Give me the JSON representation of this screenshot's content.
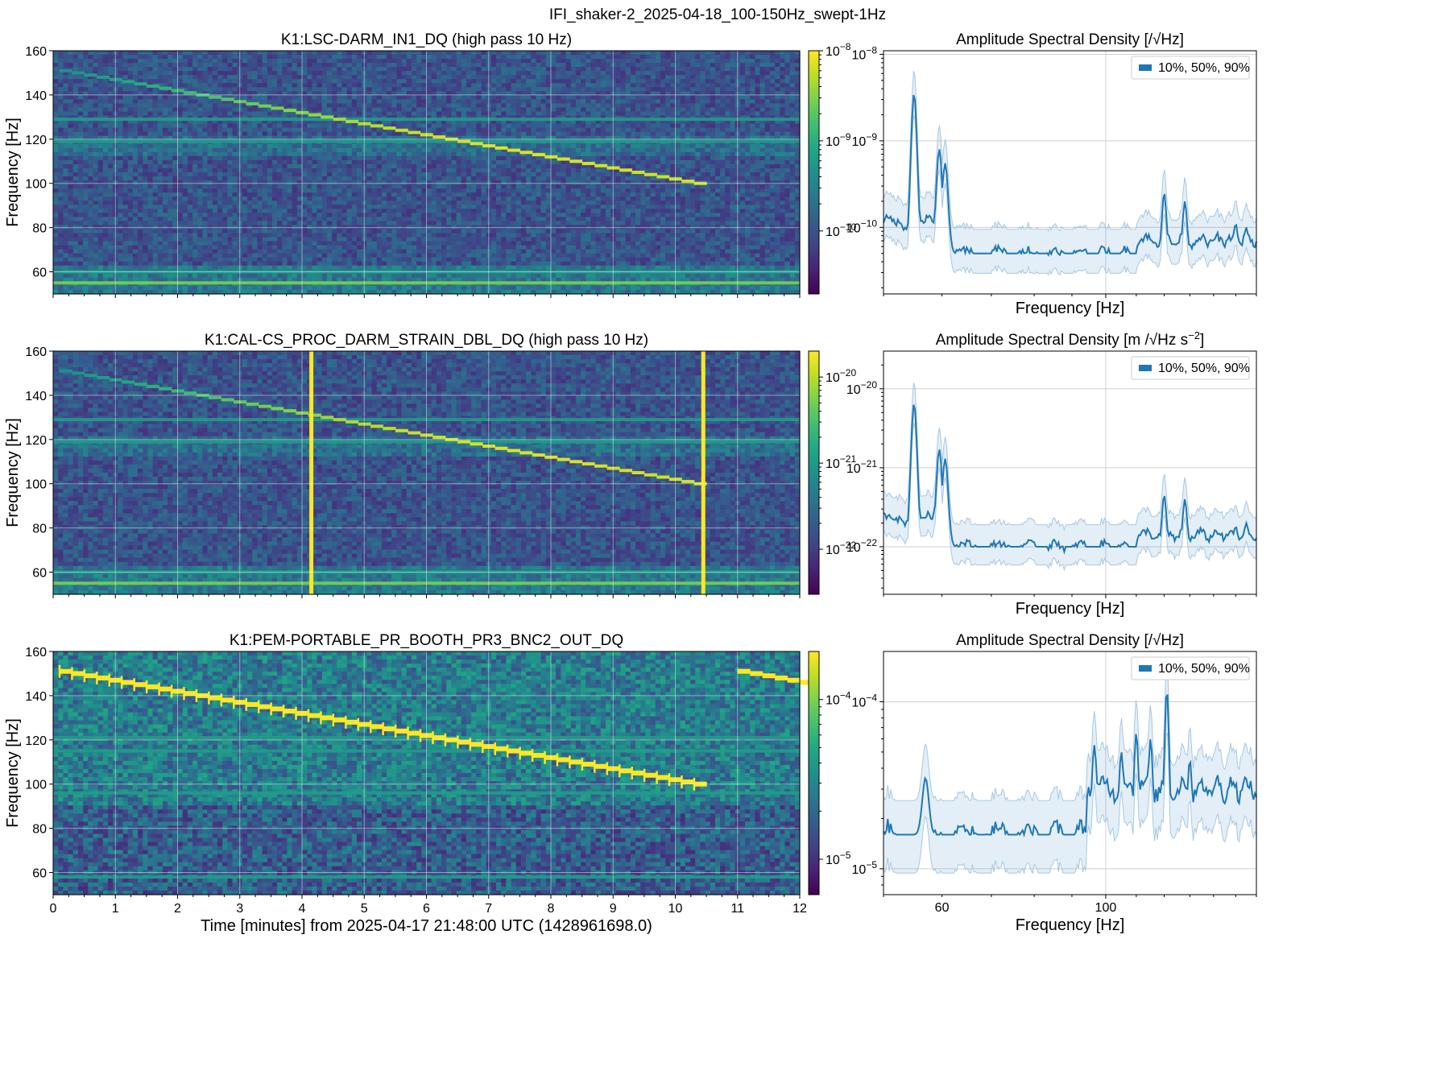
{
  "figure": {
    "suptitle": "IFI_shaker-2_2025-04-18_100-150Hz_swept-1Hz"
  },
  "chart_data": [
    {
      "type": "heatmap",
      "title": "K1:LSC-DARM_IN1_DQ (high pass 10 Hz)",
      "ylabel": "Frequency [Hz]",
      "xlabel": "",
      "xlim": [
        0,
        12
      ],
      "ylim": [
        50,
        160
      ],
      "xticks": [
        0,
        1,
        2,
        3,
        4,
        5,
        6,
        7,
        8,
        9,
        10,
        11,
        12
      ],
      "yticks": [
        60,
        80,
        100,
        120,
        140,
        160
      ],
      "colorbar": {
        "scale": "log",
        "range": [
          2e-11,
          1e-08
        ],
        "ticks": [
          "10^-8",
          "10^-9",
          "10^-10"
        ],
        "colormap": "viridis"
      },
      "sweep": {
        "start_min": 0.1,
        "end_min": 10.3,
        "start_hz": 151,
        "end_hz": 100,
        "step_hz": 1
      },
      "steady_lines_hz": [
        55,
        60,
        129,
        119
      ],
      "transients_min": []
    },
    {
      "type": "heatmap",
      "title": "K1:CAL-CS_PROC_DARM_STRAIN_DBL_DQ (high pass 10 Hz)",
      "ylabel": "Frequency [Hz]",
      "xlabel": "",
      "xlim": [
        0,
        12
      ],
      "ylim": [
        50,
        160
      ],
      "xticks": [
        0,
        1,
        2,
        3,
        4,
        5,
        6,
        7,
        8,
        9,
        10,
        11,
        12
      ],
      "yticks": [
        60,
        80,
        100,
        120,
        140,
        160
      ],
      "colorbar": {
        "scale": "log",
        "range": [
          3e-23,
          2e-20
        ],
        "ticks": [
          "10^-20",
          "10^-21",
          "10^-22"
        ],
        "colormap": "viridis"
      },
      "sweep": {
        "start_min": 0.1,
        "end_min": 10.3,
        "start_hz": 151,
        "end_hz": 100,
        "step_hz": 1
      },
      "steady_lines_hz": [
        55,
        60,
        129,
        119
      ],
      "transients_min": [
        4.15,
        10.45
      ]
    },
    {
      "type": "heatmap",
      "title": "K1:PEM-PORTABLE_PR_BOOTH_PR3_BNC2_OUT_DQ",
      "ylabel": "Frequency [Hz]",
      "xlabel": "Time [minutes] from 2025-04-17 21:48:00 UTC (1428961698.0)",
      "xlim": [
        0,
        12
      ],
      "ylim": [
        50,
        160
      ],
      "xticks": [
        0,
        1,
        2,
        3,
        4,
        5,
        6,
        7,
        8,
        9,
        10,
        11,
        12
      ],
      "yticks": [
        60,
        80,
        100,
        120,
        140,
        160
      ],
      "colorbar": {
        "scale": "log",
        "range": [
          6e-06,
          0.0002
        ],
        "ticks": [
          "10^-4",
          "10^-5"
        ],
        "colormap": "viridis"
      },
      "sweep": {
        "start_min": 0.1,
        "end_min": 10.3,
        "start_hz": 151,
        "end_hz": 100,
        "step_hz": 1
      },
      "second_sweep": {
        "start_min": 11.0,
        "end_min": 12.0,
        "start_hz": 151,
        "end_hz": 146
      },
      "steady_lines_hz": [
        121,
        115,
        96,
        58
      ],
      "transients_min": []
    },
    {
      "type": "line",
      "title": "Amplitude Spectral Density [/√Hz]",
      "xlabel": "Frequency [Hz]",
      "legend": "10%, 50%, 90%",
      "legend_position": "top-right",
      "xscale": "log",
      "yscale": "log",
      "xlim": [
        50,
        160
      ],
      "ylim": [
        1.7e-11,
        1.1e-08
      ],
      "xticks": [],
      "yticks": [
        "10^-8",
        "10^-9",
        "10^-10"
      ],
      "peaks": [
        {
          "freq": 55,
          "value": 3.5e-09
        },
        {
          "freq": 59.5,
          "value": 8e-10
        },
        {
          "freq": 60.6,
          "value": 5.5e-10
        },
        {
          "freq": 120,
          "value": 2.5e-10
        },
        {
          "freq": 128,
          "value": 2e-10
        },
        {
          "freq": 150,
          "value": 1.1e-10
        },
        {
          "freq": 155,
          "value": 1e-10
        }
      ],
      "median_level": 5e-11
    },
    {
      "type": "line",
      "title": "Amplitude Spectral Density [m /√Hz s^-2]",
      "xlabel": "Frequency [Hz]",
      "legend": "10%, 50%, 90%",
      "legend_position": "top-right",
      "xscale": "log",
      "yscale": "log",
      "xlim": [
        50,
        160
      ],
      "ylim": [
        2.5e-23,
        3e-20
      ],
      "xticks": [],
      "yticks": [
        "10^-20",
        "10^-21",
        "10^-22"
      ],
      "peaks": [
        {
          "freq": 55,
          "value": 6.5e-21
        },
        {
          "freq": 59.5,
          "value": 1.7e-21
        },
        {
          "freq": 60.6,
          "value": 1.3e-21
        },
        {
          "freq": 120,
          "value": 4.5e-22
        },
        {
          "freq": 128,
          "value": 4e-22
        },
        {
          "freq": 150,
          "value": 1.8e-22
        },
        {
          "freq": 155,
          "value": 2e-22
        }
      ],
      "median_level": 1e-22
    },
    {
      "type": "line",
      "title": "Amplitude Spectral Density [/√Hz]",
      "xlabel": "Frequency [Hz]",
      "legend": "10%, 50%, 90%",
      "legend_position": "top-right",
      "xscale": "log",
      "yscale": "log",
      "xlim": [
        50,
        160
      ],
      "ylim": [
        7e-06,
        0.0002
      ],
      "xticks": [
        60,
        100
      ],
      "yticks": [
        "10^-4",
        "10^-5"
      ],
      "peaks": [
        {
          "freq": 57,
          "value": 3.5e-05
        },
        {
          "freq": 96.5,
          "value": 5.5e-05
        },
        {
          "freq": 105,
          "value": 5e-05
        },
        {
          "freq": 110,
          "value": 6.5e-05
        },
        {
          "freq": 115,
          "value": 6e-05
        },
        {
          "freq": 121,
          "value": 0.00012
        },
        {
          "freq": 130,
          "value": 4.5e-05
        }
      ],
      "median_level": 1.6e-05
    }
  ],
  "colors": {
    "line": "#1f77b4",
    "band": "rgba(31,119,180,0.12)",
    "band_edge": "#a6c8e2"
  }
}
